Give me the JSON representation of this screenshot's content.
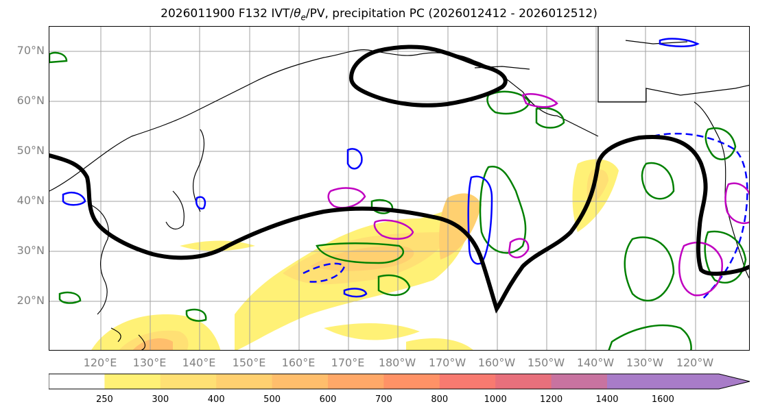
{
  "title": "2026011900 F132 IVT/θe/PV, precipitation PC (2026012412 - 2026012512)",
  "title_parts": {
    "prefix": "2026011900 F132 IVT/",
    "theta": "θ",
    "sub": "e",
    "suffix": "/PV, precipitation PC (2026012412 - 2026012512)"
  },
  "map": {
    "lon_labels": [
      "120°E",
      "130°E",
      "140°E",
      "150°E",
      "160°E",
      "170°E",
      "180°W",
      "170°W",
      "160°W",
      "150°W",
      "140°W",
      "130°W",
      "120°W"
    ],
    "lat_labels": [
      "70°N",
      "60°N",
      "50°N",
      "40°N",
      "30°N",
      "20°N"
    ],
    "colors": {
      "grid": "#a0a0a0",
      "coast": "#000000",
      "theta_e_contour": "#000000",
      "pv_contour": "#0000ff",
      "precip_contour": "#008000",
      "magenta_contour": "#c000c0"
    }
  },
  "colorbar": {
    "ticks": [
      "250",
      "300",
      "400",
      "500",
      "600",
      "700",
      "800",
      "1000",
      "1200",
      "1400",
      "1600"
    ],
    "colors": [
      "#ffffff",
      "#fff176",
      "#ffe074",
      "#ffd070",
      "#ffbe6c",
      "#ffa868",
      "#ff9266",
      "#f87a70",
      "#e8707c",
      "#c873a0",
      "#a87cc8"
    ]
  }
}
